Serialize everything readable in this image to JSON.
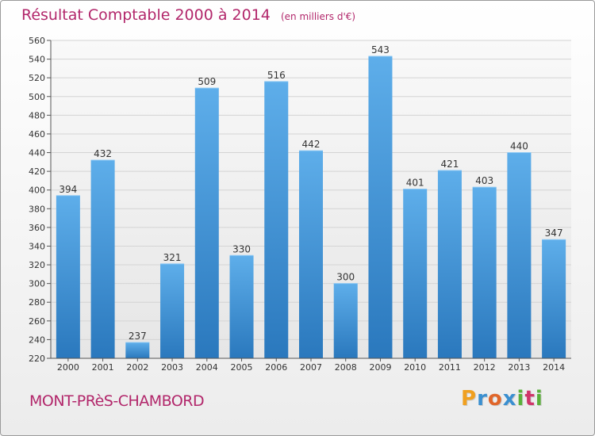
{
  "chart_data": {
    "type": "bar",
    "title": "Résultat Comptable 2000 à 2014",
    "subtitle": "(en milliers d'€)",
    "categories": [
      "2000",
      "2001",
      "2002",
      "2003",
      "2004",
      "2005",
      "2006",
      "2007",
      "2008",
      "2009",
      "2010",
      "2011",
      "2012",
      "2013",
      "2014"
    ],
    "values": [
      394,
      432,
      237,
      321,
      509,
      330,
      516,
      442,
      300,
      543,
      401,
      421,
      403,
      440,
      347
    ],
    "ylim": [
      220,
      560
    ],
    "yticks": [
      220,
      240,
      260,
      280,
      300,
      320,
      340,
      360,
      380,
      400,
      420,
      440,
      460,
      480,
      500,
      520,
      540,
      560
    ],
    "grid": true,
    "xlabel": "",
    "ylabel": "",
    "bar_color": "#4a9ee0"
  },
  "footer": {
    "commune": "MONT-PRèS-CHAMBORD",
    "logo_letters": [
      "P",
      "r",
      "o",
      "x",
      "i",
      "t",
      "i"
    ],
    "logo_colors": [
      "#f0a020",
      "#3a8fd0",
      "#e0662a",
      "#3a8fd0",
      "#5ab03a",
      "#d0356a",
      "#5ab03a"
    ]
  },
  "colors": {
    "accent": "#b2276b",
    "bar": "#4a9ee0",
    "bar_dark": "#2a7bc0",
    "grid": "#d4d4d4"
  }
}
